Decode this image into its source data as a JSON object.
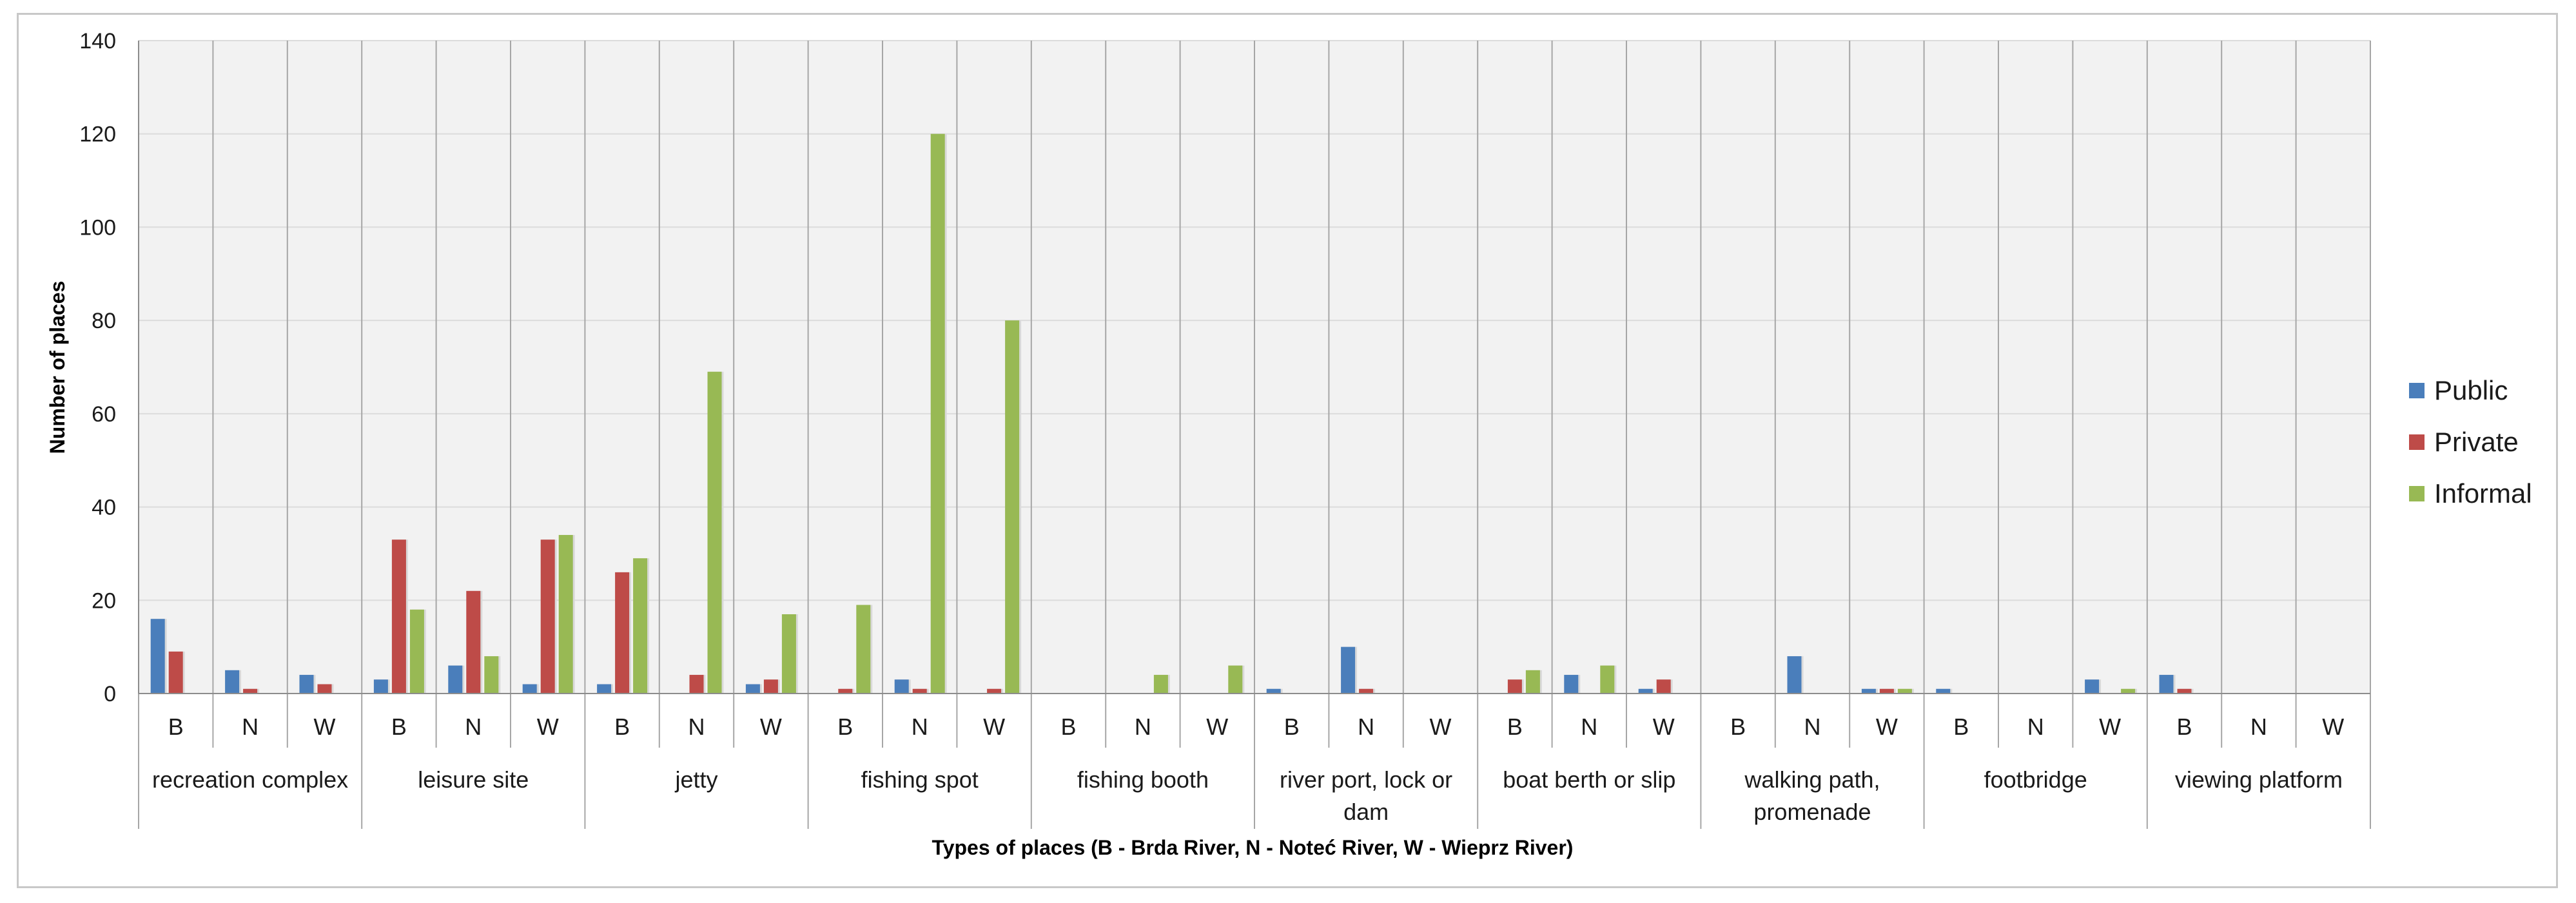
{
  "chart_data": {
    "type": "bar",
    "xlabel": "Types of places (B - Brda River, N - Noteć River, W - Wieprz River)",
    "ylabel": "Number of places",
    "ylim": [
      0,
      140
    ],
    "yticks": [
      0,
      20,
      40,
      60,
      80,
      100,
      120,
      140
    ],
    "grid": true,
    "legend_position": "right",
    "groups": [
      {
        "label": [
          "recreation complex"
        ],
        "subs": [
          "B",
          "N",
          "W"
        ]
      },
      {
        "label": [
          "leisure site"
        ],
        "subs": [
          "B",
          "N",
          "W"
        ]
      },
      {
        "label": [
          "jetty"
        ],
        "subs": [
          "B",
          "N",
          "W"
        ]
      },
      {
        "label": [
          "fishing spot"
        ],
        "subs": [
          "B",
          "N",
          "W"
        ]
      },
      {
        "label": [
          "fishing booth"
        ],
        "subs": [
          "B",
          "N",
          "W"
        ]
      },
      {
        "label": [
          "river port, lock or",
          "dam"
        ],
        "subs": [
          "B",
          "N",
          "W"
        ]
      },
      {
        "label": [
          "boat berth or slip"
        ],
        "subs": [
          "B",
          "N",
          "W"
        ]
      },
      {
        "label": [
          "walking path,",
          "promenade"
        ],
        "subs": [
          "B",
          "N",
          "W"
        ]
      },
      {
        "label": [
          "footbridge"
        ],
        "subs": [
          "B",
          "N",
          "W"
        ]
      },
      {
        "label": [
          "viewing platform"
        ],
        "subs": [
          "B",
          "N",
          "W"
        ]
      }
    ],
    "series": [
      {
        "name": "Public",
        "color": "#4a7ebb",
        "values": [
          16,
          5,
          4,
          3,
          6,
          2,
          2,
          0,
          2,
          0,
          3,
          0,
          0,
          0,
          0,
          1,
          10,
          0,
          0,
          4,
          1,
          0,
          8,
          1,
          1,
          0,
          3,
          4,
          0,
          0
        ]
      },
      {
        "name": "Private",
        "color": "#be4b48",
        "values": [
          9,
          1,
          2,
          33,
          22,
          33,
          26,
          4,
          3,
          1,
          1,
          1,
          0,
          0,
          0,
          0,
          1,
          0,
          3,
          0,
          3,
          0,
          0,
          1,
          0,
          0,
          0,
          1,
          0,
          0
        ]
      },
      {
        "name": "Informal",
        "color": "#98b954",
        "values": [
          0,
          0,
          0,
          18,
          8,
          34,
          29,
          69,
          17,
          19,
          120,
          80,
          0,
          4,
          6,
          0,
          0,
          0,
          5,
          6,
          0,
          0,
          0,
          1,
          0,
          0,
          1,
          0,
          0,
          0
        ]
      }
    ]
  }
}
